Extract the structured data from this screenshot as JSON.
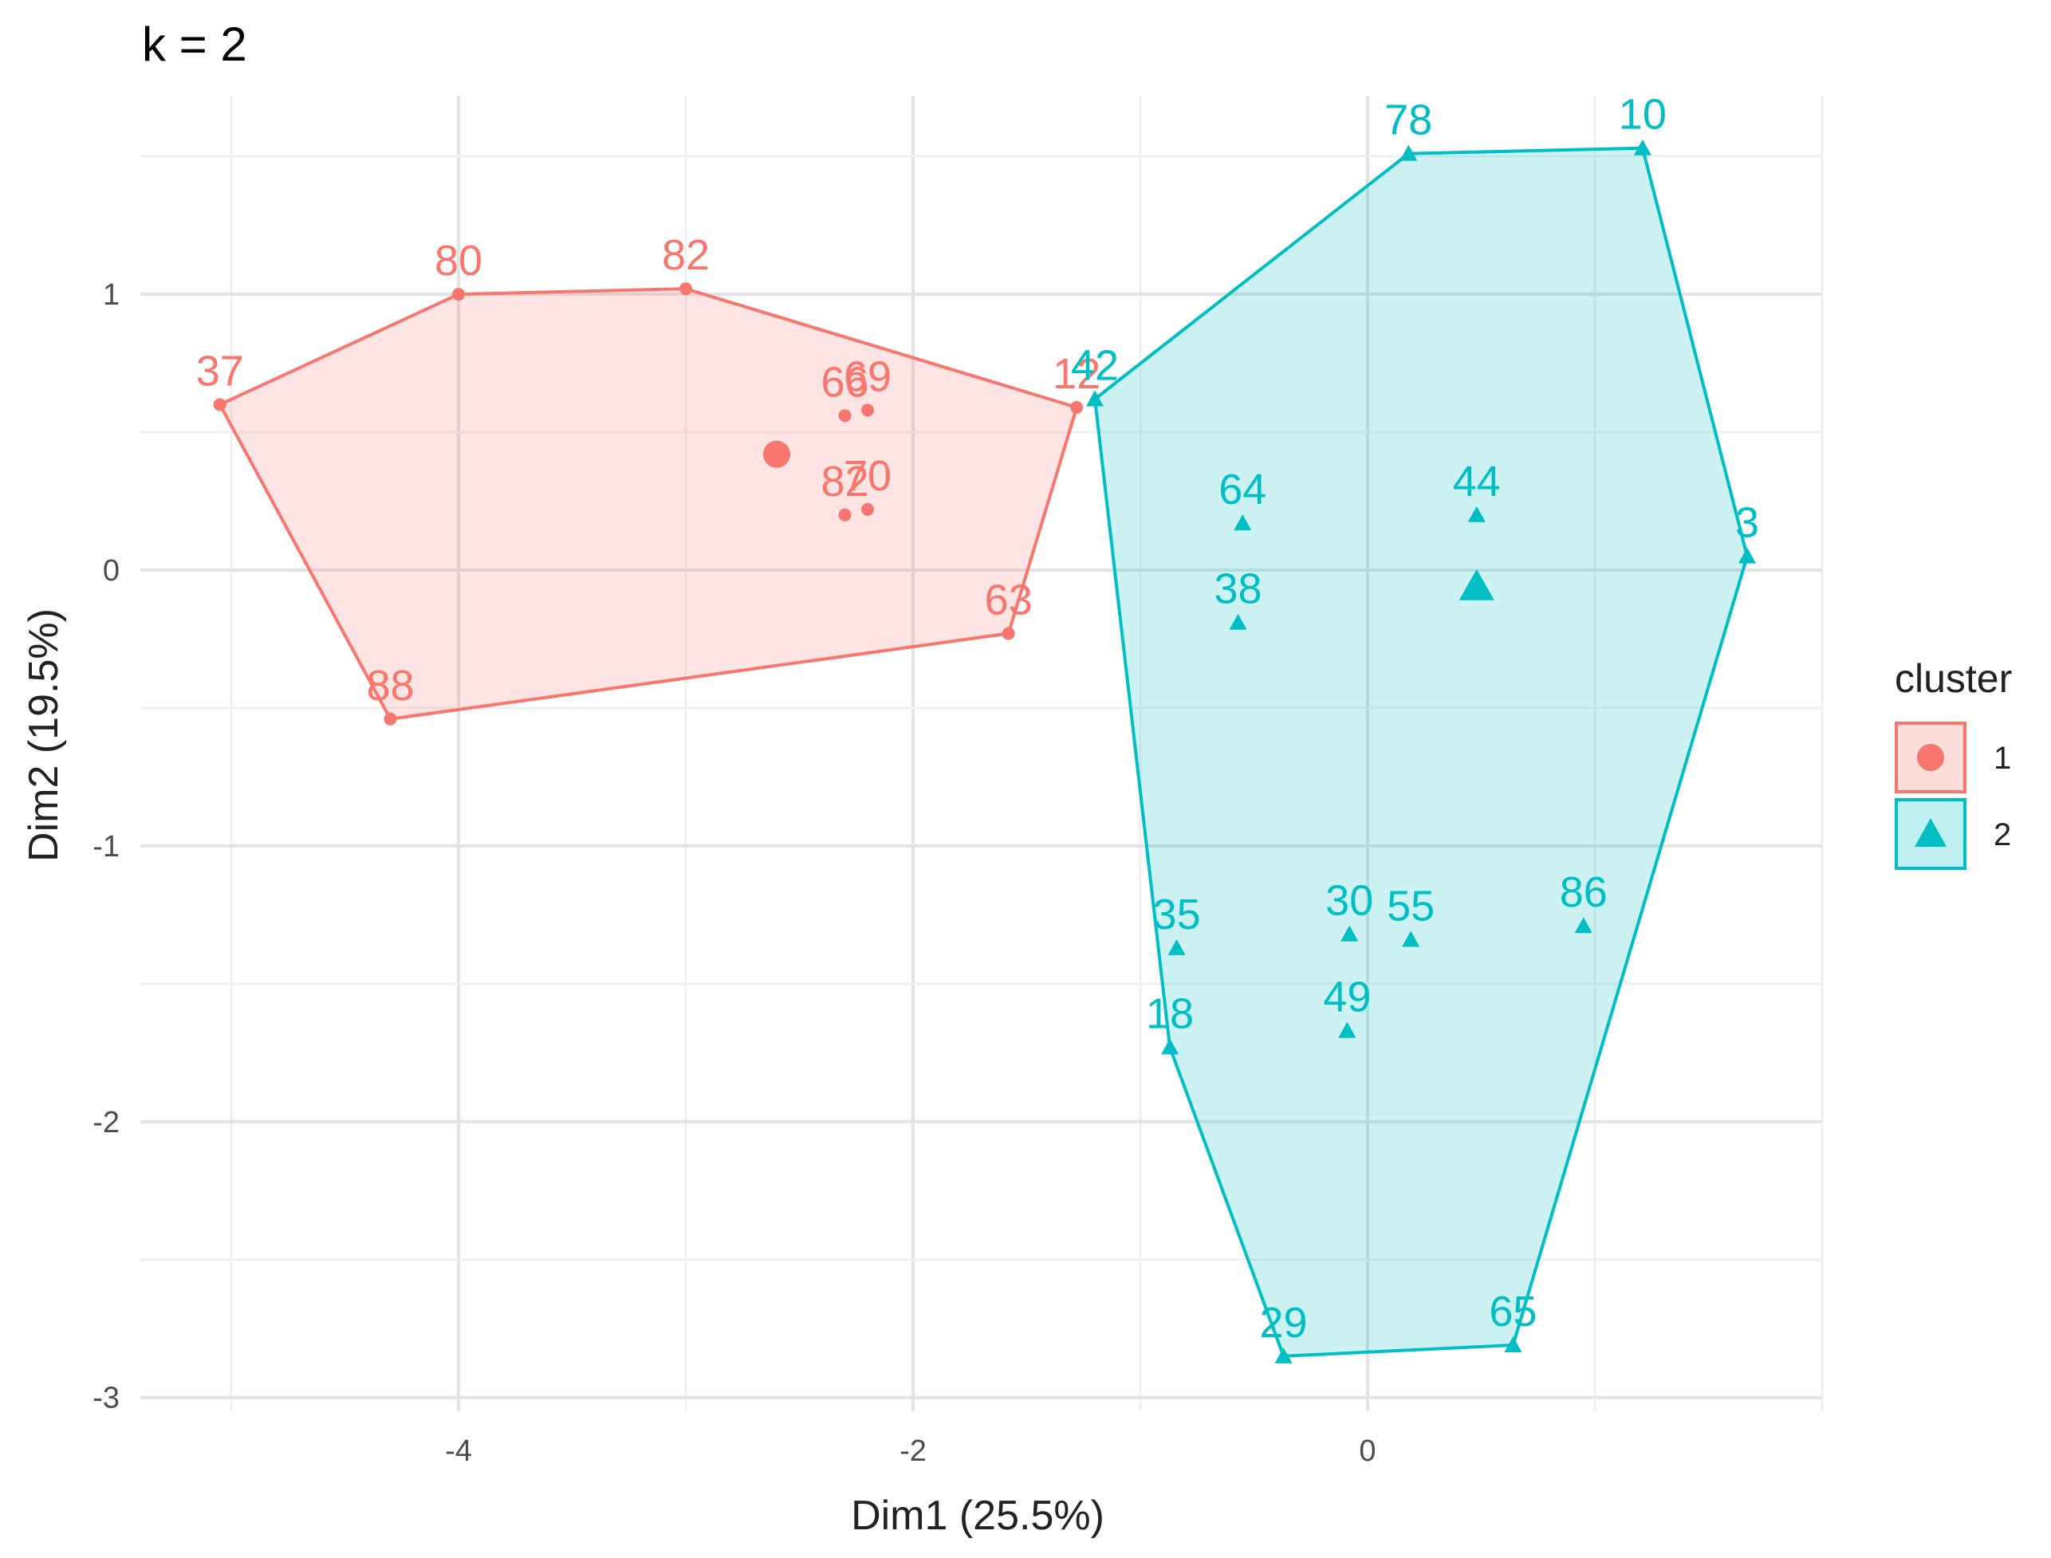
{
  "chart_data": {
    "type": "scatter",
    "title": "k = 2",
    "xlabel": "Dim1 (25.5%)",
    "ylabel": "Dim2 (19.5%)",
    "xlim": [
      -5.4,
      2.0
    ],
    "ylim": [
      -3.05,
      1.72
    ],
    "xticks": [
      -4,
      -2,
      0
    ],
    "yticks": [
      -3,
      -2,
      -1,
      0,
      1
    ],
    "grid": true,
    "legend": {
      "title": "cluster",
      "position": "right",
      "entries": [
        "1",
        "2"
      ]
    },
    "colors": {
      "cluster1": "#F8766D",
      "cluster2": "#00BFC4"
    },
    "series": [
      {
        "name": "1",
        "points": [
          {
            "x": -5.05,
            "y": 0.6,
            "label": "37"
          },
          {
            "x": -4.0,
            "y": 1.0,
            "label": "80"
          },
          {
            "x": -3.0,
            "y": 1.02,
            "label": "82"
          },
          {
            "x": -2.3,
            "y": 0.56,
            "label": "66"
          },
          {
            "x": -2.2,
            "y": 0.58,
            "label": "69"
          },
          {
            "x": -2.3,
            "y": 0.2,
            "label": "82"
          },
          {
            "x": -2.2,
            "y": 0.22,
            "label": "70"
          },
          {
            "x": -1.28,
            "y": 0.59,
            "label": "12"
          },
          {
            "x": -1.58,
            "y": -0.23,
            "label": "63"
          },
          {
            "x": -4.3,
            "y": -0.54,
            "label": "88"
          }
        ],
        "hull": [
          [
            -5.05,
            0.6
          ],
          [
            -4.0,
            1.0
          ],
          [
            -3.0,
            1.02
          ],
          [
            -1.28,
            0.59
          ],
          [
            -1.58,
            -0.23
          ],
          [
            -4.3,
            -0.54
          ]
        ],
        "centroid": {
          "x": -2.6,
          "y": 0.42
        }
      },
      {
        "name": "2",
        "points": [
          {
            "x": 0.18,
            "y": 1.51,
            "label": "78"
          },
          {
            "x": 1.21,
            "y": 1.53,
            "label": "10"
          },
          {
            "x": -1.2,
            "y": 0.62,
            "label": "42"
          },
          {
            "x": -0.55,
            "y": 0.17,
            "label": "64"
          },
          {
            "x": 0.48,
            "y": 0.2,
            "label": "44"
          },
          {
            "x": 1.67,
            "y": 0.05,
            "label": "3"
          },
          {
            "x": -0.57,
            "y": -0.19,
            "label": "38"
          },
          {
            "x": -0.08,
            "y": -1.32,
            "label": "30"
          },
          {
            "x": 0.19,
            "y": -1.34,
            "label": "55"
          },
          {
            "x": 0.95,
            "y": -1.29,
            "label": "86"
          },
          {
            "x": -0.84,
            "y": -1.37,
            "label": "35"
          },
          {
            "x": -0.09,
            "y": -1.67,
            "label": "49"
          },
          {
            "x": -0.87,
            "y": -1.73,
            "label": "18"
          },
          {
            "x": -0.37,
            "y": -2.85,
            "label": "29"
          },
          {
            "x": 0.64,
            "y": -2.81,
            "label": "65"
          }
        ],
        "hull": [
          [
            0.18,
            1.51
          ],
          [
            1.21,
            1.53
          ],
          [
            1.67,
            0.05
          ],
          [
            0.64,
            -2.81
          ],
          [
            -0.37,
            -2.85
          ],
          [
            -0.87,
            -1.73
          ],
          [
            -1.2,
            0.62
          ]
        ],
        "centroid": {
          "x": 0.48,
          "y": -0.06
        }
      }
    ]
  }
}
